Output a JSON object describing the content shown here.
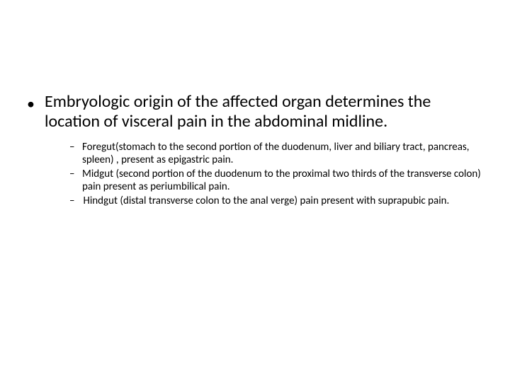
{
  "main": {
    "bullet": "•",
    "text": "Embryologic origin of the affected organ determines the location of visceral pain in the abdominal midline."
  },
  "subs": [
    {
      "dash": "–",
      "text": "Foregut(stomach to the second portion of the duodenum, liver and biliary tract, pancreas, spleen) , present as epigastric pain."
    },
    {
      "dash": "–",
      "text": "Midgut (second portion of the duodenum to the proximal two thirds of the transverse colon) pain present as periumbilical pain."
    },
    {
      "dash": "–",
      "text": " Hindgut (distal transverse colon to the anal verge) pain present with suprapubic pain."
    }
  ],
  "styles": {
    "background_color": "#ffffff",
    "text_color": "#000000",
    "main_fontsize": 24,
    "sub_fontsize": 15,
    "font_family": "Calibri"
  }
}
